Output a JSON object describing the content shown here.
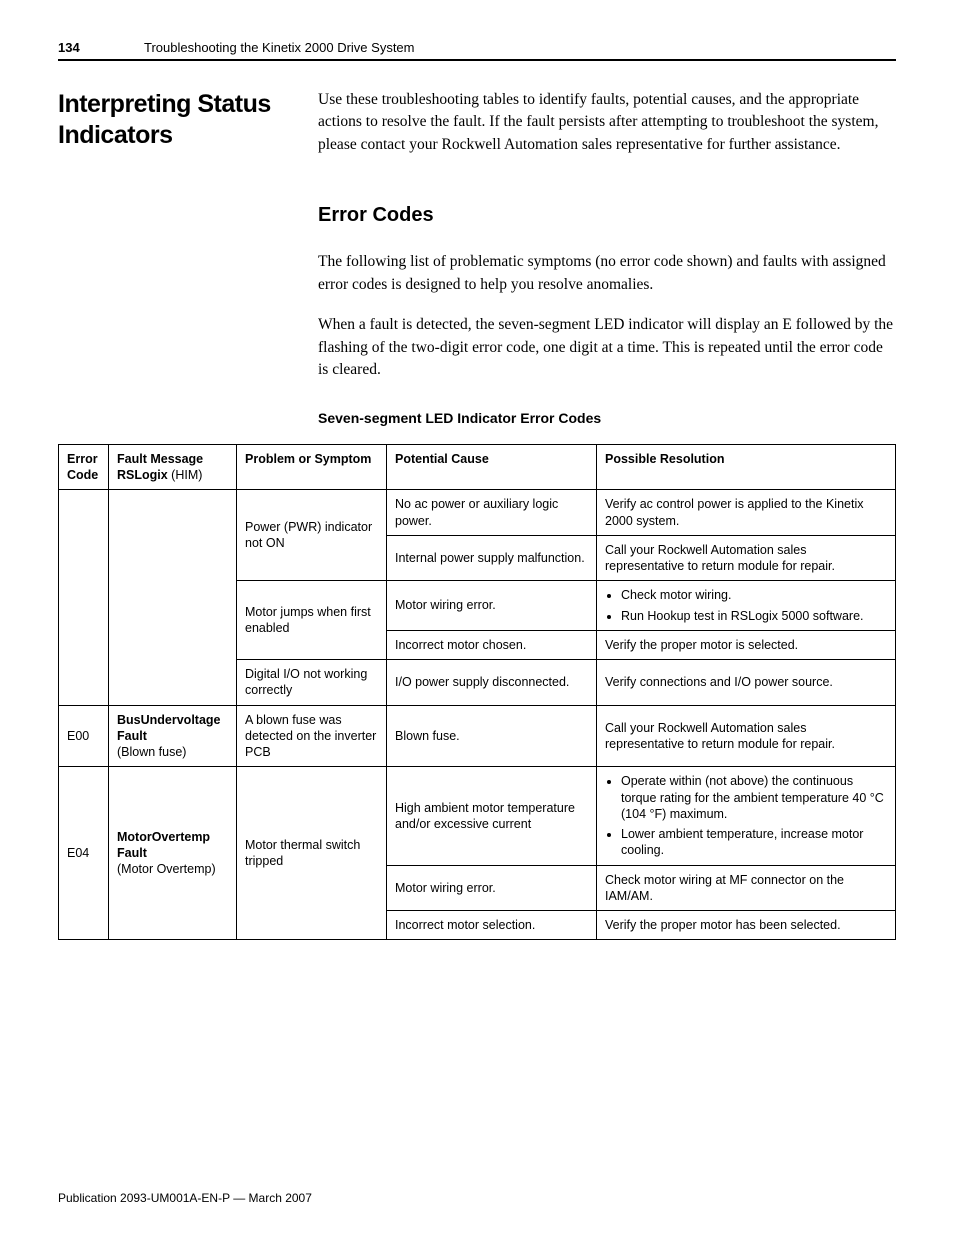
{
  "header": {
    "page_number": "134",
    "chapter": "Troubleshooting the Kinetix 2000 Drive System"
  },
  "section": {
    "title": "Interpreting Status Indicators",
    "intro": "Use these troubleshooting tables to identify faults, potential causes, and the appropriate actions to resolve the fault. If the fault persists after attempting to troubleshoot the system, please contact your Rockwell Automation sales representative for further assistance."
  },
  "error_codes": {
    "title": "Error Codes",
    "para1": "The following list of problematic symptoms (no error code shown) and faults with assigned error codes is designed to help you resolve anomalies.",
    "para2": "When a fault is detected, the seven-segment LED indicator will display an E followed by the flashing of the two-digit error code, one digit at a time. This is repeated until the error code is cleared.",
    "table_title": "Seven-segment LED Indicator Error Codes"
  },
  "table": {
    "columns": {
      "error_code": "Error Code",
      "fault_msg_bold": "Fault Message",
      "fault_msg_norm_pre": "RSLogix",
      "fault_msg_norm_post": " (HIM)",
      "problem": "Problem or Symptom",
      "cause": "Potential Cause",
      "resolution": "Possible Resolution"
    },
    "rows": {
      "r1": {
        "problem": "Power (PWR) indicator not ON",
        "cause": "No ac power or auxiliary logic power.",
        "res": "Verify ac control power is applied to the Kinetix 2000 system."
      },
      "r2": {
        "cause": "Internal power supply malfunction.",
        "res": "Call your Rockwell Automation sales representative to return module for repair."
      },
      "r3": {
        "problem": "Motor jumps when first enabled",
        "cause": "Motor wiring error.",
        "res_items": [
          "Check motor wiring.",
          "Run Hookup test in RSLogix 5000 software."
        ]
      },
      "r4": {
        "cause": "Incorrect motor chosen.",
        "res": "Verify the proper motor is selected."
      },
      "r5": {
        "problem": "Digital I/O not working correctly",
        "cause": "I/O power supply disconnected.",
        "res": "Verify connections and I/O power source."
      },
      "r6": {
        "code": "E00",
        "fault_bold": "BusUndervoltage Fault",
        "fault_norm": "(Blown fuse)",
        "problem": "A blown fuse was detected on the inverter PCB",
        "cause": "Blown fuse.",
        "res": "Call your Rockwell Automation sales representative to return module for repair."
      },
      "r7": {
        "code": "E04",
        "fault_bold": "MotorOvertemp Fault",
        "fault_norm": "(Motor Overtemp)",
        "problem": "Motor thermal switch tripped",
        "cause": "High ambient motor temperature and/or excessive current",
        "res_items": [
          "Operate within (not above) the continuous torque rating for the ambient temperature 40 °C (104 °F) maximum.",
          "Lower ambient temperature, increase motor cooling."
        ]
      },
      "r8": {
        "cause": "Motor wiring error.",
        "res": "Check motor wiring at MF connector on the IAM/AM."
      },
      "r9": {
        "cause": "Incorrect motor selection.",
        "res": "Verify the proper motor has been selected."
      }
    }
  },
  "footer": {
    "text": "Publication 2093-UM001A-EN-P — March 2007"
  }
}
